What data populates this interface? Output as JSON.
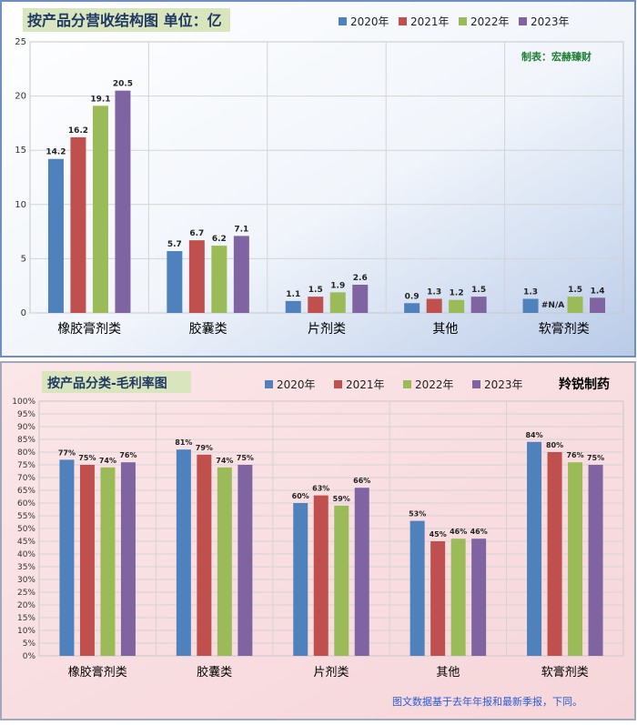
{
  "chart_data": [
    {
      "type": "bar",
      "title": "按产品分营收结构图 单位：亿",
      "credit": "制表：宏赫臻财",
      "categories": [
        "橡胶膏剂类",
        "胶囊类",
        "片剂类",
        "其他",
        "软膏剂类"
      ],
      "series": [
        {
          "name": "2020年",
          "color": "#4f81bd",
          "values": [
            14.2,
            5.7,
            1.1,
            0.9,
            1.3
          ],
          "labels": [
            "14.2",
            "5.7",
            "1.1",
            "0.9",
            "1.3"
          ]
        },
        {
          "name": "2021年",
          "color": "#c0504d",
          "values": [
            16.2,
            6.7,
            1.5,
            1.3,
            null
          ],
          "labels": [
            "16.2",
            "6.7",
            "1.5",
            "1.3",
            "#N/A"
          ]
        },
        {
          "name": "2022年",
          "color": "#9bbb59",
          "values": [
            19.1,
            6.2,
            1.9,
            1.2,
            1.5
          ],
          "labels": [
            "19.1",
            "6.2",
            "1.9",
            "1.2",
            "1.5"
          ]
        },
        {
          "name": "2023年",
          "color": "#8064a2",
          "values": [
            20.5,
            7.1,
            2.6,
            1.5,
            1.4
          ],
          "labels": [
            "20.5",
            "7.1",
            "2.6",
            "1.5",
            "1.4"
          ]
        }
      ],
      "ylim": [
        0,
        25
      ],
      "yticks": [
        "0",
        "5",
        "10",
        "15",
        "20",
        "25"
      ],
      "grid": true,
      "legend": "top"
    },
    {
      "type": "bar",
      "title": "按产品分类-毛利率图",
      "credit": "羚锐制药",
      "categories": [
        "橡胶膏剂类",
        "胶囊类",
        "片剂类",
        "其他",
        "软膏剂类"
      ],
      "series": [
        {
          "name": "2020年",
          "color": "#4f81bd",
          "values": [
            77,
            81,
            60,
            53,
            84
          ],
          "labels": [
            "77%",
            "81%",
            "60%",
            "53%",
            "84%"
          ]
        },
        {
          "name": "2021年",
          "color": "#c0504d",
          "values": [
            75,
            79,
            63,
            45,
            80
          ],
          "labels": [
            "75%",
            "79%",
            "63%",
            "45%",
            "80%"
          ]
        },
        {
          "name": "2022年",
          "color": "#9bbb59",
          "values": [
            74,
            74,
            59,
            46,
            76
          ],
          "labels": [
            "74%",
            "74%",
            "59%",
            "46%",
            "76%"
          ]
        },
        {
          "name": "2023年",
          "color": "#8064a2",
          "values": [
            76,
            75,
            66,
            46,
            75
          ],
          "labels": [
            "76%",
            "75%",
            "66%",
            "46%",
            "75%"
          ]
        }
      ],
      "ylim": [
        0,
        100
      ],
      "yticks": [
        "0%",
        "5%",
        "10%",
        "15%",
        "20%",
        "25%",
        "30%",
        "35%",
        "40%",
        "45%",
        "50%",
        "55%",
        "60%",
        "65%",
        "70%",
        "75%",
        "80%",
        "85%",
        "90%",
        "95%",
        "100%"
      ],
      "grid": true,
      "legend": "top",
      "footnote": "图文数据基于去年年报和最新季报，下同。"
    }
  ]
}
